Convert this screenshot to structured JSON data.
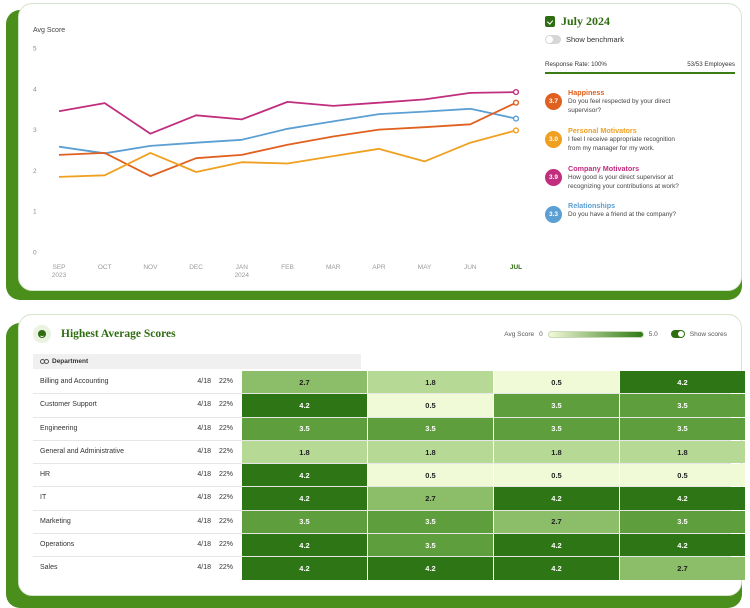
{
  "chart_data": {
    "type": "line",
    "ylabel": "Avg Score",
    "ylim": [
      0,
      5
    ],
    "yticks": [
      "0",
      "1",
      "2",
      "3",
      "4",
      "5"
    ],
    "categories": [
      "SEP",
      "OCT",
      "NOV",
      "DEC",
      "JAN",
      "FEB",
      "MAR",
      "APR",
      "MAY",
      "JUN",
      "JUL"
    ],
    "category_years": [
      "2023",
      "",
      "",
      "",
      "2024",
      "",
      "",
      "",
      "",
      "",
      ""
    ],
    "highlight_category": "JUL",
    "series": [
      {
        "name": "Company Motivators",
        "color": "#c12e7e",
        "values": [
          3.45,
          3.65,
          2.9,
          3.35,
          3.25,
          3.68,
          3.58,
          3.66,
          3.74,
          3.9,
          3.92
        ]
      },
      {
        "name": "Relationships",
        "color": "#5b9fd3",
        "values": [
          2.58,
          2.42,
          2.6,
          2.68,
          2.75,
          3.02,
          3.2,
          3.38,
          3.44,
          3.51,
          3.27
        ]
      },
      {
        "name": "Happiness",
        "color": "#e0601f",
        "values": [
          2.38,
          2.43,
          1.86,
          2.3,
          2.38,
          2.63,
          2.83,
          3.0,
          3.06,
          3.13,
          3.66
        ]
      },
      {
        "name": "Personal Motivators",
        "color": "#f0a020",
        "values": [
          1.84,
          1.88,
          2.43,
          1.96,
          2.2,
          2.17,
          2.35,
          2.53,
          2.22,
          2.68,
          2.98
        ]
      }
    ]
  },
  "panel": {
    "month": "July 2024",
    "benchmark_label": "Show benchmark",
    "response_rate": "Response Rate: 100%",
    "employees": "53/53 Employees",
    "metrics": [
      {
        "score": "3.7",
        "title": "Happiness",
        "color": "#e0601f",
        "desc_1": "Do you feel respected by your direct",
        "desc_2": "supervisor?"
      },
      {
        "score": "3.0",
        "title": "Personal Motivators",
        "color": "#f0a020",
        "desc_1": "I feel I receive appropriate recognition",
        "desc_2": "from my manager for my work."
      },
      {
        "score": "3.9",
        "title": "Company Motivators",
        "color": "#c12e7e",
        "desc_1": "How good is your direct supervisor at",
        "desc_2": "recognizing your contributions at work?"
      },
      {
        "score": "3.3",
        "title": "Relationships",
        "color": "#5b9fd3",
        "desc_1": "Do you have a friend at the company?",
        "desc_2": ""
      }
    ]
  },
  "table": {
    "title": "Highest Average Scores",
    "legend_label": "Avg Score",
    "legend_min": "0",
    "legend_max": "5.0",
    "show_scores_label": "Show scores",
    "department_label": "Department",
    "rows": [
      {
        "name": "Billing and Accounting",
        "frac": "4/18",
        "pct": "22%",
        "scores": [
          "2.7",
          "1.8",
          "0.5",
          "4.2"
        ]
      },
      {
        "name": "Customer Support",
        "frac": "4/18",
        "pct": "22%",
        "scores": [
          "4.2",
          "0.5",
          "3.5",
          "3.5"
        ]
      },
      {
        "name": "Engineering",
        "frac": "4/18",
        "pct": "22%",
        "scores": [
          "3.5",
          "3.5",
          "3.5",
          "3.5"
        ]
      },
      {
        "name": "General and Administrative",
        "frac": "4/18",
        "pct": "22%",
        "scores": [
          "1.8",
          "1.8",
          "1.8",
          "1.8"
        ]
      },
      {
        "name": "HR",
        "frac": "4/18",
        "pct": "22%",
        "scores": [
          "4.2",
          "0.5",
          "0.5",
          "0.5"
        ]
      },
      {
        "name": "IT",
        "frac": "4/18",
        "pct": "22%",
        "scores": [
          "4.2",
          "2.7",
          "4.2",
          "4.2"
        ]
      },
      {
        "name": "Marketing",
        "frac": "4/18",
        "pct": "22%",
        "scores": [
          "3.5",
          "3.5",
          "2.7",
          "3.5"
        ]
      },
      {
        "name": "Operations",
        "frac": "4/18",
        "pct": "22%",
        "scores": [
          "4.2",
          "3.5",
          "4.2",
          "4.2"
        ]
      },
      {
        "name": "Sales",
        "frac": "4/18",
        "pct": "22%",
        "scores": [
          "4.2",
          "4.2",
          "4.2",
          "2.7"
        ]
      }
    ]
  },
  "heat_colors": {
    "0.5": "#f1fad6",
    "1.8": "#b7d996",
    "2.7": "#8cbd69",
    "3.5": "#5e9e3c",
    "4.2": "#2d7515"
  }
}
